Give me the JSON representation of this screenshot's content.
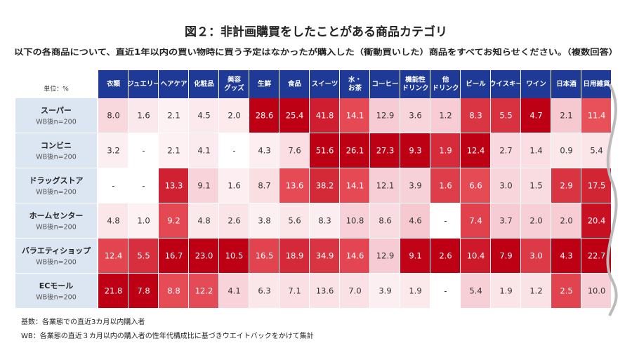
{
  "title": "図２：非計画購買をしたことがある商品カテゴリ",
  "subtitle": "以下の各商品について、直近1年以内の買い物時に買う予定はなかったが購入した（衝動買いした）商品をすべてお知らせください。（複数回答）",
  "table": {
    "unit": "単位：%",
    "columns": [
      [
        "衣類"
      ],
      [
        "ジュエリー"
      ],
      [
        "ヘアケア"
      ],
      [
        "化粧品"
      ],
      [
        "美容",
        "グッズ"
      ],
      [
        "生鮮"
      ],
      [
        "食品"
      ],
      [
        "スイーツ"
      ],
      [
        "水・",
        "お茶"
      ],
      [
        "コーヒー"
      ],
      [
        "機能性",
        "ドリンク"
      ],
      [
        "他",
        "ドリンク"
      ],
      [
        "ビール"
      ],
      [
        "ウイスキー"
      ],
      [
        "ワイン"
      ],
      [
        "日本酒"
      ],
      [
        "日用雑貨"
      ]
    ],
    "rows": [
      {
        "name": "スーパー",
        "sample": "WB後n=200",
        "values": [
          "8.0",
          "1.6",
          "2.1",
          "4.5",
          "2.0",
          "28.6",
          "25.4",
          "41.8",
          "14.1",
          "12.9",
          "3.6",
          "1.2",
          "8.3",
          "5.5",
          "4.7",
          "2.1",
          "11.4"
        ]
      },
      {
        "name": "コンビニ",
        "sample": "WB後n=200",
        "values": [
          "3.2",
          "-",
          "2.1",
          "4.1",
          "-",
          "4.3",
          "7.6",
          "51.6",
          "26.1",
          "27.3",
          "9.3",
          "1.9",
          "12.4",
          "2.7",
          "1.4",
          "0.9",
          "5.4"
        ]
      },
      {
        "name": "ドラッグストア",
        "sample": "WB後n=200",
        "values": [
          "-",
          "-",
          "13.3",
          "9.1",
          "1.6",
          "8.7",
          "13.6",
          "38.2",
          "14.1",
          "12.1",
          "3.9",
          "1.6",
          "6.6",
          "3.0",
          "1.5",
          "2.9",
          "17.5"
        ]
      },
      {
        "name": "ホームセンター",
        "sample": "WB後n=200",
        "values": [
          "4.8",
          "1.0",
          "9.2",
          "4.8",
          "2.6",
          "3.8",
          "5.6",
          "8.3",
          "10.8",
          "8.6",
          "4.6",
          "-",
          "7.4",
          "3.7",
          "2.0",
          "2.0",
          "20.4"
        ]
      },
      {
        "name": "バラエティショップ",
        "sample": "WB後n=200",
        "values": [
          "12.4",
          "5.5",
          "16.7",
          "23.0",
          "10.5",
          "16.5",
          "18.9",
          "34.9",
          "14.6",
          "12.9",
          "9.1",
          "2.6",
          "10.4",
          "7.9",
          "3.0",
          "4.3",
          "22.7"
        ]
      },
      {
        "name": "ECモール",
        "sample": "WB後n=200",
        "values": [
          "21.8",
          "7.8",
          "8.8",
          "12.2",
          "4.1",
          "6.3",
          "7.1",
          "13.6",
          "7.0",
          "3.9",
          "1.9",
          "-",
          "5.4",
          "1.9",
          "1.2",
          "2.5",
          "10.0"
        ]
      }
    ]
  },
  "notes": [
    "基数：各業態での直近3カ月以内購入者",
    "WB：各業態の直近３カ月以内の購入者の性年代構成比に基づきウエイトバックをかけて集計"
  ]
}
